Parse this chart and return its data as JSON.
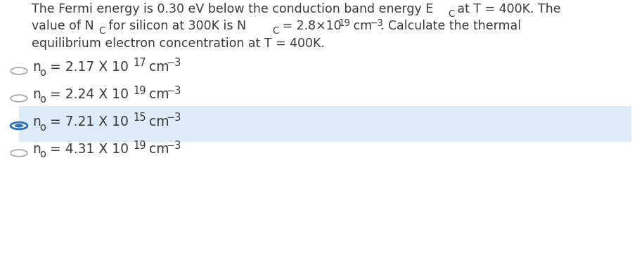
{
  "background_color": "#ffffff",
  "text_color": "#3a3a3a",
  "selected_bg_color": "#ddeaf7",
  "selected_border_color": "#2a6db5",
  "unselected_circle_color": "#aaaaaa",
  "font_size_question": 12.5,
  "font_size_options": 13.5,
  "figsize": [
    9.16,
    3.73
  ],
  "dpi": 100,
  "options": [
    {
      "selected": false,
      "coeff": "2.17",
      "exp": "17"
    },
    {
      "selected": false,
      "coeff": "2.24",
      "exp": "19"
    },
    {
      "selected": true,
      "coeff": "7.21",
      "exp": "15"
    },
    {
      "selected": false,
      "coeff": "4.31",
      "exp": "19"
    }
  ]
}
